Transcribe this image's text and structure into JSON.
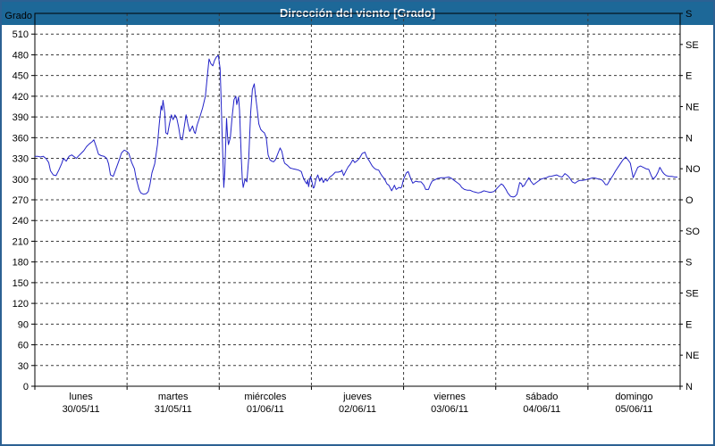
{
  "window": {
    "title": "Dirección del viento [Grado]"
  },
  "colors": {
    "titlebar_bg": "#1d6898",
    "titlebar_text": "#ffffff",
    "frame_border": "#2c6193",
    "plot_bg": "#ffffff",
    "grid": "#3c3c3c",
    "axis": "#000000",
    "line": "#2323c8"
  },
  "chart_data": {
    "type": "line",
    "title": "Dirección del viento [Grado]",
    "grid": {
      "horizontal_dashed": true,
      "vertical_dashed": true
    },
    "y_left": {
      "label": "Grado",
      "min": 0,
      "max": 540,
      "ticks": [
        0,
        30,
        60,
        90,
        120,
        150,
        180,
        210,
        240,
        270,
        300,
        330,
        360,
        390,
        420,
        450,
        480,
        510
      ]
    },
    "y_right": {
      "ticks": [
        {
          "value": 0,
          "label": "N"
        },
        {
          "value": 45,
          "label": "NE"
        },
        {
          "value": 90,
          "label": "E"
        },
        {
          "value": 135,
          "label": "SE"
        },
        {
          "value": 180,
          "label": "S"
        },
        {
          "value": 225,
          "label": "SO"
        },
        {
          "value": 270,
          "label": "O"
        },
        {
          "value": 315,
          "label": "NO"
        },
        {
          "value": 360,
          "label": "N"
        },
        {
          "value": 405,
          "label": "NE"
        },
        {
          "value": 450,
          "label": "E"
        },
        {
          "value": 495,
          "label": "SE"
        },
        {
          "value": 540,
          "label": "S"
        }
      ]
    },
    "x_axis": {
      "min": 0,
      "max": 7,
      "days": [
        {
          "name": "lunes",
          "date": "30/05/11"
        },
        {
          "name": "martes",
          "date": "31/05/11"
        },
        {
          "name": "miércoles",
          "date": "01/06/11"
        },
        {
          "name": "jueves",
          "date": "02/06/11"
        },
        {
          "name": "viernes",
          "date": "03/06/11"
        },
        {
          "name": "sábado",
          "date": "04/06/11"
        },
        {
          "name": "domingo",
          "date": "05/06/11"
        }
      ]
    },
    "series": [
      {
        "name": "Dirección del viento",
        "color": "#2323c8",
        "points": [
          [
            0,
            333
          ],
          [
            0.03,
            333
          ],
          [
            0.06,
            332
          ],
          [
            0.09,
            333
          ],
          [
            0.12,
            330
          ],
          [
            0.15,
            324
          ],
          [
            0.17,
            312
          ],
          [
            0.2,
            306
          ],
          [
            0.23,
            305
          ],
          [
            0.26,
            313
          ],
          [
            0.29,
            322
          ],
          [
            0.31,
            330
          ],
          [
            0.34,
            326
          ],
          [
            0.37,
            333
          ],
          [
            0.4,
            335
          ],
          [
            0.43,
            332
          ],
          [
            0.45,
            330
          ],
          [
            0.47,
            333
          ],
          [
            0.5,
            337
          ],
          [
            0.53,
            341
          ],
          [
            0.56,
            347
          ],
          [
            0.59,
            351
          ],
          [
            0.62,
            354
          ],
          [
            0.64,
            357
          ],
          [
            0.67,
            345
          ],
          [
            0.69,
            336
          ],
          [
            0.72,
            334
          ],
          [
            0.75,
            333
          ],
          [
            0.78,
            330
          ],
          [
            0.8,
            322
          ],
          [
            0.82,
            306
          ],
          [
            0.85,
            304
          ],
          [
            0.88,
            315
          ],
          [
            0.91,
            326
          ],
          [
            0.94,
            338
          ],
          [
            0.97,
            342
          ],
          [
            1,
            340
          ],
          [
            1.02,
            337
          ],
          [
            1.05,
            324
          ],
          [
            1.08,
            315
          ],
          [
            1.1,
            300
          ],
          [
            1.13,
            285
          ],
          [
            1.15,
            280
          ],
          [
            1.18,
            278
          ],
          [
            1.21,
            279
          ],
          [
            1.23,
            282
          ],
          [
            1.25,
            293
          ],
          [
            1.27,
            309
          ],
          [
            1.3,
            322
          ],
          [
            1.33,
            350
          ],
          [
            1.35,
            380
          ],
          [
            1.37,
            406
          ],
          [
            1.38,
            400
          ],
          [
            1.39,
            414
          ],
          [
            1.41,
            395
          ],
          [
            1.42,
            367
          ],
          [
            1.44,
            365
          ],
          [
            1.46,
            380
          ],
          [
            1.48,
            393
          ],
          [
            1.5,
            386
          ],
          [
            1.52,
            393
          ],
          [
            1.54,
            388
          ],
          [
            1.56,
            375
          ],
          [
            1.58,
            358
          ],
          [
            1.6,
            357
          ],
          [
            1.62,
            375
          ],
          [
            1.64,
            393
          ],
          [
            1.66,
            380
          ],
          [
            1.68,
            369
          ],
          [
            1.7,
            374
          ],
          [
            1.71,
            377
          ],
          [
            1.73,
            368
          ],
          [
            1.74,
            366
          ],
          [
            1.76,
            378
          ],
          [
            1.79,
            390
          ],
          [
            1.82,
            403
          ],
          [
            1.85,
            420
          ],
          [
            1.87,
            448
          ],
          [
            1.89,
            474
          ],
          [
            1.91,
            467
          ],
          [
            1.93,
            464
          ],
          [
            1.95,
            472
          ],
          [
            1.97,
            477
          ],
          [
            1.99,
            479
          ],
          [
            2.01,
            460
          ],
          [
            2.02,
            420
          ],
          [
            2.03,
            370
          ],
          [
            2.04,
            330
          ],
          [
            2.05,
            288
          ],
          [
            2.06,
            310
          ],
          [
            2.07,
            350
          ],
          [
            2.08,
            388
          ],
          [
            2.09,
            362
          ],
          [
            2.1,
            350
          ],
          [
            2.12,
            360
          ],
          [
            2.14,
            390
          ],
          [
            2.16,
            415
          ],
          [
            2.18,
            420
          ],
          [
            2.19,
            408
          ],
          [
            2.21,
            419
          ],
          [
            2.22,
            400
          ],
          [
            2.24,
            330
          ],
          [
            2.25,
            300
          ],
          [
            2.26,
            288
          ],
          [
            2.28,
            300
          ],
          [
            2.3,
            296
          ],
          [
            2.32,
            330
          ],
          [
            2.34,
            395
          ],
          [
            2.36,
            430
          ],
          [
            2.38,
            438
          ],
          [
            2.39,
            425
          ],
          [
            2.41,
            403
          ],
          [
            2.43,
            380
          ],
          [
            2.45,
            372
          ],
          [
            2.47,
            369
          ],
          [
            2.49,
            367
          ],
          [
            2.51,
            360
          ],
          [
            2.53,
            335
          ],
          [
            2.55,
            328
          ],
          [
            2.57,
            326
          ],
          [
            2.59,
            325
          ],
          [
            2.61,
            328
          ],
          [
            2.63,
            335
          ],
          [
            2.66,
            345
          ],
          [
            2.68,
            340
          ],
          [
            2.7,
            327
          ],
          [
            2.71,
            323
          ],
          [
            2.74,
            320
          ],
          [
            2.77,
            316
          ],
          [
            2.8,
            315
          ],
          [
            2.83,
            314
          ],
          [
            2.86,
            313
          ],
          [
            2.89,
            311
          ],
          [
            2.91,
            303
          ],
          [
            2.93,
            297
          ],
          [
            2.95,
            293
          ],
          [
            2.96,
            299
          ],
          [
            2.97,
            289
          ],
          [
            2.99,
            304
          ],
          [
            3,
            300
          ],
          [
            3.02,
            287
          ],
          [
            3.03,
            288
          ],
          [
            3.05,
            300
          ],
          [
            3.07,
            306
          ],
          [
            3.09,
            297
          ],
          [
            3.11,
            302
          ],
          [
            3.13,
            295
          ],
          [
            3.15,
            300
          ],
          [
            3.17,
            297
          ],
          [
            3.2,
            303
          ],
          [
            3.23,
            306
          ],
          [
            3.26,
            310
          ],
          [
            3.29,
            310
          ],
          [
            3.32,
            311
          ],
          [
            3.33,
            313
          ],
          [
            3.35,
            305
          ],
          [
            3.38,
            313
          ],
          [
            3.4,
            318
          ],
          [
            3.42,
            321
          ],
          [
            3.45,
            328
          ],
          [
            3.47,
            324
          ],
          [
            3.49,
            326
          ],
          [
            3.52,
            330
          ],
          [
            3.55,
            337
          ],
          [
            3.58,
            339
          ],
          [
            3.6,
            332
          ],
          [
            3.63,
            326
          ],
          [
            3.66,
            319
          ],
          [
            3.68,
            316
          ],
          [
            3.7,
            314
          ],
          [
            3.73,
            313
          ],
          [
            3.75,
            308
          ],
          [
            3.77,
            304
          ],
          [
            3.79,
            301
          ],
          [
            3.82,
            293
          ],
          [
            3.84,
            291
          ],
          [
            3.87,
            283
          ],
          [
            3.89,
            288
          ],
          [
            3.9,
            291
          ],
          [
            3.92,
            285
          ],
          [
            3.95,
            288
          ],
          [
            3.97,
            287
          ],
          [
            3.98,
            289
          ],
          [
            4,
            300
          ],
          [
            4.03,
            309
          ],
          [
            4.05,
            311
          ],
          [
            4.08,
            300
          ],
          [
            4.1,
            294
          ],
          [
            4.13,
            297
          ],
          [
            4.16,
            296
          ],
          [
            4.19,
            296
          ],
          [
            4.22,
            291
          ],
          [
            4.24,
            285
          ],
          [
            4.27,
            285
          ],
          [
            4.29,
            292
          ],
          [
            4.31,
            297
          ],
          [
            4.34,
            299
          ],
          [
            4.37,
            301
          ],
          [
            4.41,
            302
          ],
          [
            4.45,
            302
          ],
          [
            4.49,
            303
          ],
          [
            4.52,
            301
          ],
          [
            4.55,
            298
          ],
          [
            4.58,
            295
          ],
          [
            4.61,
            292
          ],
          [
            4.63,
            288
          ],
          [
            4.66,
            285
          ],
          [
            4.69,
            284
          ],
          [
            4.72,
            284
          ],
          [
            4.75,
            282
          ],
          [
            4.78,
            281
          ],
          [
            4.81,
            280
          ],
          [
            4.84,
            281
          ],
          [
            4.87,
            283
          ],
          [
            4.9,
            282
          ],
          [
            4.93,
            281
          ],
          [
            4.95,
            281
          ],
          [
            4.98,
            282
          ],
          [
            5.01,
            286
          ],
          [
            5.03,
            289
          ],
          [
            5.06,
            293
          ],
          [
            5.08,
            291
          ],
          [
            5.11,
            285
          ],
          [
            5.13,
            280
          ],
          [
            5.16,
            275
          ],
          [
            5.19,
            274
          ],
          [
            5.21,
            275
          ],
          [
            5.23,
            278
          ],
          [
            5.26,
            295
          ],
          [
            5.28,
            293
          ],
          [
            5.29,
            289
          ],
          [
            5.31,
            291
          ],
          [
            5.33,
            296
          ],
          [
            5.36,
            302
          ],
          [
            5.38,
            297
          ],
          [
            5.41,
            292
          ],
          [
            5.43,
            294
          ],
          [
            5.46,
            297
          ],
          [
            5.49,
            300
          ],
          [
            5.52,
            301
          ],
          [
            5.55,
            302
          ],
          [
            5.58,
            304
          ],
          [
            5.6,
            304
          ],
          [
            5.63,
            305
          ],
          [
            5.66,
            306
          ],
          [
            5.69,
            304
          ],
          [
            5.72,
            303
          ],
          [
            5.75,
            308
          ],
          [
            5.78,
            305
          ],
          [
            5.8,
            302
          ],
          [
            5.83,
            296
          ],
          [
            5.86,
            294
          ],
          [
            5.89,
            297
          ],
          [
            5.91,
            298
          ],
          [
            5.94,
            298
          ],
          [
            5.97,
            299
          ],
          [
            6,
            300
          ],
          [
            6.03,
            301
          ],
          [
            6.06,
            302
          ],
          [
            6.09,
            301
          ],
          [
            6.12,
            300
          ],
          [
            6.15,
            299
          ],
          [
            6.17,
            296
          ],
          [
            6.19,
            292
          ],
          [
            6.21,
            292
          ],
          [
            6.24,
            299
          ],
          [
            6.27,
            305
          ],
          [
            6.3,
            312
          ],
          [
            6.33,
            318
          ],
          [
            6.36,
            324
          ],
          [
            6.38,
            328
          ],
          [
            6.41,
            332
          ],
          [
            6.44,
            327
          ],
          [
            6.46,
            323
          ],
          [
            6.49,
            302
          ],
          [
            6.51,
            308
          ],
          [
            6.54,
            317
          ],
          [
            6.57,
            319
          ],
          [
            6.6,
            317
          ],
          [
            6.63,
            315
          ],
          [
            6.66,
            314
          ],
          [
            6.69,
            304
          ],
          [
            6.71,
            300
          ],
          [
            6.74,
            305
          ],
          [
            6.76,
            310
          ],
          [
            6.78,
            317
          ],
          [
            6.81,
            310
          ],
          [
            6.83,
            307
          ],
          [
            6.85,
            305
          ],
          [
            6.88,
            304
          ],
          [
            6.91,
            304
          ],
          [
            6.94,
            303
          ],
          [
            6.97,
            303
          ]
        ]
      }
    ]
  }
}
